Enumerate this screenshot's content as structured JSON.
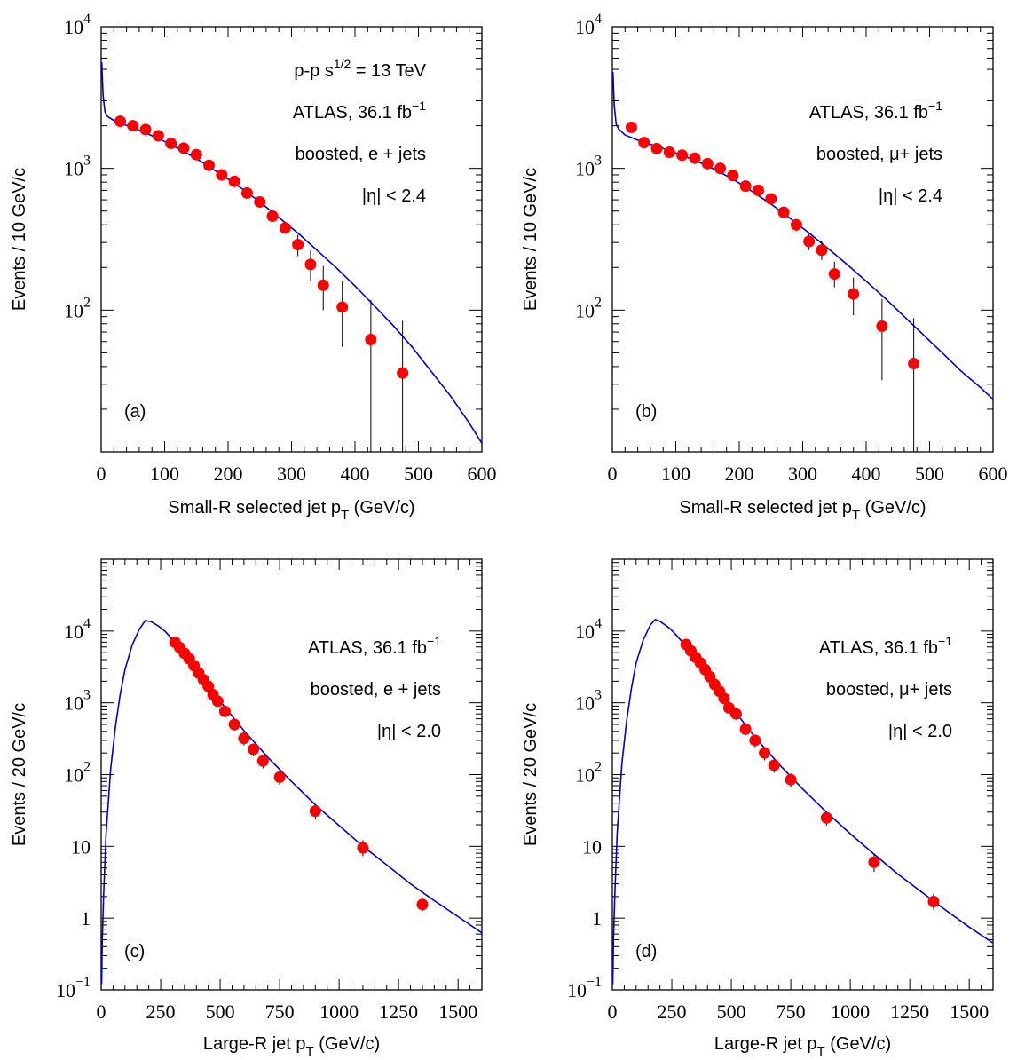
{
  "colors": {
    "points": "#ff0000",
    "curve": "#0000cc",
    "axes": "#000000"
  },
  "chart_data": [
    {
      "type": "scatter",
      "panel_label": "(a)",
      "xlabel": "Small-R selected jet p",
      "xlabel_sub": "T",
      "xlabel_unit": " (GeV/c)",
      "ylabel": "Events / 10 GeV/c",
      "xlim": [
        0,
        600
      ],
      "ylim": [
        10,
        10000
      ],
      "yscale": "log",
      "x_ticks": [
        0,
        100,
        200,
        300,
        400,
        500,
        600
      ],
      "x_tick_labels": [
        "0",
        "100",
        "200",
        "300",
        "400",
        "500",
        "600"
      ],
      "y_ticks": [
        100,
        1000,
        10000
      ],
      "y_tick_labels": [
        {
          "base": "10",
          "exp": "2"
        },
        {
          "base": "10",
          "exp": "3"
        },
        {
          "base": "10",
          "exp": "4"
        }
      ],
      "annotations": [
        {
          "base": "p-p  s",
          "sup": "1/2",
          "rest": " = 13 TeV"
        },
        {
          "base": "ATLAS, 36.1 fb",
          "sup": "−1",
          "rest": ""
        },
        {
          "base": "boosted, e + jets",
          "sup": "",
          "rest": ""
        },
        {
          "base": "|η| < 2.4",
          "sup": "",
          "rest": ""
        }
      ],
      "series": [
        {
          "kind": "points",
          "x": [
            30,
            50,
            70,
            90,
            110,
            130,
            150,
            170,
            190,
            210,
            230,
            250,
            270,
            290,
            310,
            330,
            350,
            380,
            425,
            475
          ],
          "y": [
            2150,
            2000,
            1880,
            1700,
            1500,
            1390,
            1250,
            1050,
            900,
            810,
            670,
            580,
            460,
            380,
            290,
            210,
            150,
            105,
            62,
            36
          ],
          "y_err_low": [
            2070,
            1920,
            1800,
            1620,
            1420,
            1320,
            1170,
            980,
            840,
            760,
            620,
            540,
            420,
            345,
            240,
            160,
            100,
            55,
            10,
            10
          ],
          "y_err_high": [
            2230,
            2080,
            1960,
            1780,
            1580,
            1460,
            1330,
            1120,
            960,
            860,
            720,
            630,
            510,
            420,
            340,
            265,
            205,
            160,
            118,
            84
          ]
        },
        {
          "kind": "line",
          "x": [
            1,
            3,
            6,
            10,
            20,
            40,
            60,
            80,
            100,
            130,
            160,
            190,
            220,
            250,
            280,
            310,
            340,
            370,
            400,
            430,
            460,
            490,
            520,
            550,
            580,
            600
          ],
          "y": [
            5600,
            3300,
            2500,
            2320,
            2180,
            2010,
            1860,
            1700,
            1550,
            1320,
            1100,
            900,
            730,
            580,
            450,
            350,
            265,
            200,
            148,
            108,
            78,
            55,
            37,
            25,
            16,
            11.5
          ]
        }
      ]
    },
    {
      "type": "scatter",
      "panel_label": "(b)",
      "xlabel": "Small-R selected jet p",
      "xlabel_sub": "T",
      "xlabel_unit": " (GeV/c)",
      "ylabel": "Events / 10 GeV/c",
      "xlim": [
        0,
        600
      ],
      "ylim": [
        10,
        10000
      ],
      "yscale": "log",
      "x_ticks": [
        0,
        100,
        200,
        300,
        400,
        500,
        600
      ],
      "x_tick_labels": [
        "0",
        "100",
        "200",
        "300",
        "400",
        "500",
        "600"
      ],
      "y_ticks": [
        100,
        1000,
        10000
      ],
      "y_tick_labels": [
        {
          "base": "10",
          "exp": "2"
        },
        {
          "base": "10",
          "exp": "3"
        },
        {
          "base": "10",
          "exp": "4"
        }
      ],
      "annotations": [
        {
          "base": "ATLAS, 36.1 fb",
          "sup": "−1",
          "rest": ""
        },
        {
          "base": "boosted, μ+ jets",
          "sup": "",
          "rest": ""
        },
        {
          "base": "|η| < 2.4",
          "sup": "",
          "rest": ""
        }
      ],
      "series": [
        {
          "kind": "points",
          "x": [
            30,
            50,
            70,
            90,
            110,
            130,
            150,
            170,
            190,
            210,
            230,
            250,
            270,
            290,
            310,
            330,
            350,
            380,
            425,
            475
          ],
          "y": [
            1950,
            1520,
            1380,
            1300,
            1240,
            1180,
            1080,
            1000,
            890,
            750,
            700,
            610,
            490,
            400,
            305,
            265,
            180,
            130,
            77,
            42
          ],
          "y_err_low": [
            1880,
            1460,
            1320,
            1240,
            1180,
            1120,
            1020,
            940,
            830,
            700,
            650,
            560,
            450,
            360,
            265,
            225,
            145,
            92,
            32,
            10
          ],
          "y_err_high": [
            2020,
            1580,
            1440,
            1360,
            1300,
            1240,
            1140,
            1060,
            950,
            800,
            750,
            660,
            530,
            440,
            345,
            310,
            220,
            170,
            120,
            88
          ]
        },
        {
          "kind": "line",
          "x": [
            1,
            3,
            6,
            10,
            20,
            40,
            60,
            80,
            100,
            130,
            160,
            190,
            220,
            250,
            280,
            310,
            340,
            370,
            400,
            430,
            460,
            490,
            520,
            550,
            580,
            600
          ],
          "y": [
            4800,
            2800,
            2050,
            1900,
            1720,
            1580,
            1480,
            1380,
            1280,
            1140,
            990,
            840,
            690,
            560,
            445,
            350,
            272,
            210,
            160,
            121,
            90,
            67,
            50,
            37,
            28.5,
            23.5
          ]
        }
      ]
    },
    {
      "type": "scatter",
      "panel_label": "(c)",
      "xlabel": "Large-R jet p",
      "xlabel_sub": "T",
      "xlabel_unit": " (GeV/c)",
      "ylabel": "Events / 20 GeV/c",
      "xlim": [
        0,
        1600
      ],
      "ylim": [
        0.1,
        100000
      ],
      "yscale": "log",
      "x_ticks": [
        0,
        250,
        500,
        750,
        1000,
        1250,
        1500
      ],
      "x_tick_labels": [
        "0",
        "250",
        "500",
        "750",
        "1000",
        "1250",
        "1500"
      ],
      "y_ticks": [
        0.1,
        1,
        10,
        100,
        1000,
        10000
      ],
      "y_tick_labels": [
        {
          "base": "10",
          "exp": "−1"
        },
        {
          "base": "1",
          "exp": ""
        },
        {
          "base": "10",
          "exp": ""
        },
        {
          "base": "10",
          "exp": "2"
        },
        {
          "base": "10",
          "exp": "3"
        },
        {
          "base": "10",
          "exp": "4"
        }
      ],
      "annotations": [
        {
          "base": "ATLAS, 36.1 fb",
          "sup": "−1",
          "rest": ""
        },
        {
          "base": "boosted, e + jets",
          "sup": "",
          "rest": ""
        },
        {
          "base": "|η| < 2.0",
          "sup": "",
          "rest": ""
        }
      ],
      "series": [
        {
          "kind": "points",
          "x": [
            310,
            330,
            350,
            370,
            390,
            410,
            430,
            450,
            470,
            490,
            520,
            560,
            600,
            640,
            680,
            750,
            900,
            1100,
            1350
          ],
          "y": [
            7000,
            5900,
            4900,
            4100,
            3300,
            2600,
            2100,
            1700,
            1300,
            1050,
            760,
            500,
            320,
            225,
            155,
            92,
            31,
            9.5,
            1.55
          ],
          "y_err_low": [
            6400,
            5400,
            4450,
            3700,
            2950,
            2300,
            1850,
            1480,
            1120,
            890,
            640,
            410,
            255,
            180,
            122,
            72,
            24,
            7.3,
            1.25
          ],
          "y_err_high": [
            7600,
            6400,
            5350,
            4500,
            3650,
            2900,
            2350,
            1920,
            1480,
            1210,
            880,
            590,
            390,
            270,
            190,
            114,
            39,
            12.2,
            1.95
          ]
        },
        {
          "kind": "line",
          "x": [
            2,
            5,
            10,
            20,
            40,
            60,
            80,
            100,
            130,
            160,
            185,
            210,
            240,
            270,
            300,
            350,
            400,
            450,
            500,
            600,
            700,
            800,
            900,
            1000,
            1100,
            1200,
            1300,
            1400,
            1500,
            1600
          ],
          "y": [
            0.12,
            0.5,
            2,
            14,
            120,
            470,
            1300,
            2900,
            6400,
            10500,
            14000,
            13500,
            11800,
            9800,
            7600,
            4700,
            2800,
            1700,
            1050,
            410,
            175,
            80,
            38,
            19.5,
            10,
            5.5,
            3,
            1.75,
            1.05,
            0.62
          ]
        }
      ]
    },
    {
      "type": "scatter",
      "panel_label": "(d)",
      "xlabel": "Large-R jet p",
      "xlabel_sub": "T",
      "xlabel_unit": " (GeV/c)",
      "ylabel": "Events / 20 GeV/c",
      "xlim": [
        0,
        1600
      ],
      "ylim": [
        0.1,
        100000
      ],
      "yscale": "log",
      "x_ticks": [
        0,
        250,
        500,
        750,
        1000,
        1250,
        1500
      ],
      "x_tick_labels": [
        "0",
        "250",
        "500",
        "750",
        "1000",
        "1250",
        "1500"
      ],
      "y_ticks": [
        0.1,
        1,
        10,
        100,
        1000,
        10000
      ],
      "y_tick_labels": [
        {
          "base": "10",
          "exp": "−1"
        },
        {
          "base": "1",
          "exp": ""
        },
        {
          "base": "10",
          "exp": ""
        },
        {
          "base": "10",
          "exp": "2"
        },
        {
          "base": "10",
          "exp": "3"
        },
        {
          "base": "10",
          "exp": "4"
        }
      ],
      "annotations": [
        {
          "base": "ATLAS, 36.1 fb",
          "sup": "−1",
          "rest": ""
        },
        {
          "base": "boosted, μ+ jets",
          "sup": "",
          "rest": ""
        },
        {
          "base": "|η| < 2.0",
          "sup": "",
          "rest": ""
        }
      ],
      "series": [
        {
          "kind": "points",
          "x": [
            310,
            330,
            350,
            370,
            390,
            410,
            430,
            450,
            470,
            490,
            520,
            560,
            600,
            640,
            680,
            750,
            900,
            1100,
            1350
          ],
          "y": [
            6500,
            5300,
            4300,
            3600,
            2900,
            2300,
            1800,
            1450,
            1150,
            850,
            700,
            430,
            300,
            200,
            135,
            85,
            25,
            6,
            1.7
          ],
          "y_err_low": [
            5950,
            4850,
            3920,
            3270,
            2620,
            2070,
            1610,
            1290,
            1010,
            740,
            600,
            355,
            240,
            158,
            106,
            66,
            19.5,
            4.4,
            1.3
          ],
          "y_err_high": [
            7050,
            5750,
            4680,
            3930,
            3180,
            2530,
            1990,
            1610,
            1290,
            960,
            800,
            505,
            360,
            242,
            164,
            104,
            31,
            7.8,
            2.2
          ]
        },
        {
          "kind": "line",
          "x": [
            2,
            5,
            10,
            20,
            40,
            60,
            80,
            100,
            130,
            160,
            180,
            200,
            240,
            270,
            300,
            350,
            400,
            450,
            500,
            600,
            700,
            800,
            900,
            1000,
            1100,
            1200,
            1300,
            1400,
            1500,
            1600
          ],
          "y": [
            0.12,
            0.5,
            2,
            15,
            140,
            560,
            1600,
            3600,
            7600,
            12200,
            14500,
            13700,
            11000,
            8700,
            6700,
            4100,
            2450,
            1450,
            880,
            330,
            140,
            63,
            30,
            15,
            7.8,
            4.1,
            2.3,
            1.3,
            0.75,
            0.45
          ]
        }
      ]
    }
  ]
}
